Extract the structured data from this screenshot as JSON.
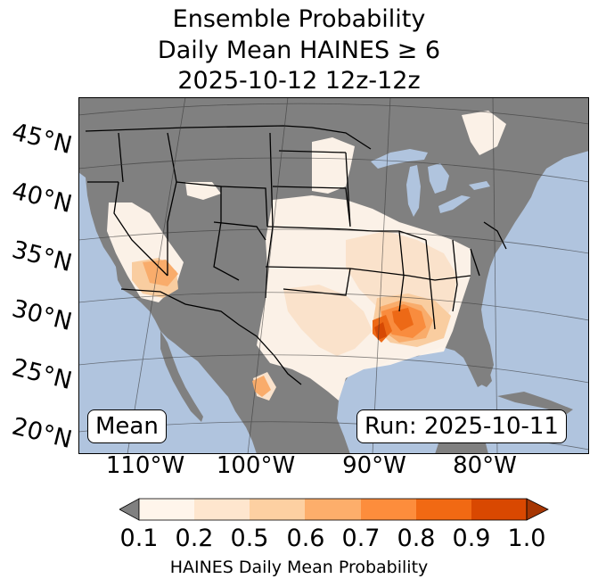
{
  "title": {
    "line1": "Ensemble Probability",
    "line2": "Daily Mean HAINES ≥ 6",
    "line3": "2025-10-12 12z-12z"
  },
  "map": {
    "lat_labels": [
      "45°N",
      "40°N",
      "35°N",
      "30°N",
      "25°N",
      "20°N"
    ],
    "lon_labels": [
      "110°W",
      "100°W",
      "90°W",
      "80°W"
    ],
    "ocean_color": "#b0c4de",
    "land_color": "#808080",
    "mean_label": "Mean",
    "run_label": "Run: 2025-10-11"
  },
  "colorbar": {
    "ticks": [
      "0.1",
      "0.2",
      "0.5",
      "0.6",
      "0.7",
      "0.8",
      "0.9",
      "1.0"
    ],
    "colors": [
      "#fff5eb",
      "#fee6ce",
      "#fdd0a2",
      "#fdae6b",
      "#fd8d3c",
      "#f16913",
      "#d94801"
    ],
    "under_color": "#808080",
    "over_color": "#a63603",
    "label": "HAINES Daily Mean Probability"
  }
}
